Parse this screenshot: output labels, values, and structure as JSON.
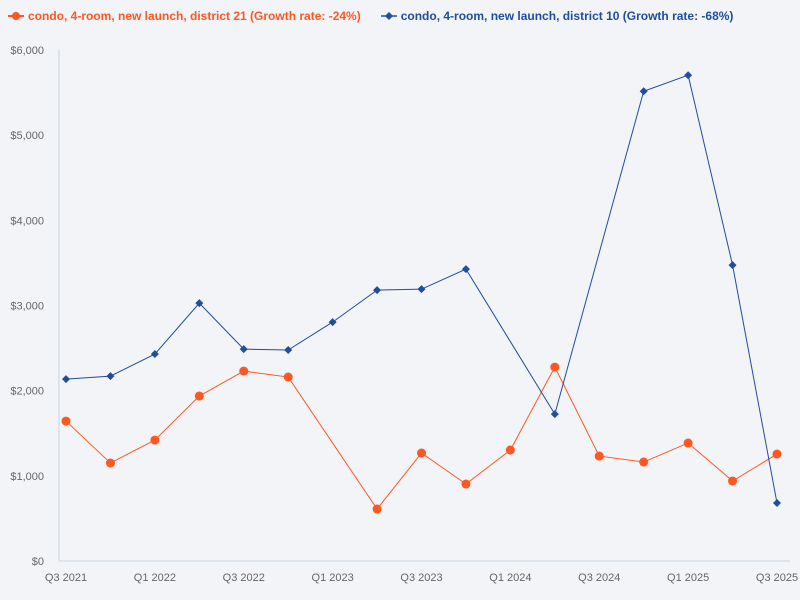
{
  "chart_data": {
    "type": "line",
    "x": [
      "Q3 2021",
      "Q4 2021",
      "Q1 2022",
      "Q2 2022",
      "Q3 2022",
      "Q4 2022",
      "Q1 2023",
      "Q2 2023",
      "Q3 2023",
      "Q4 2023",
      "Q1 2024",
      "Q2 2024",
      "Q3 2024",
      "Q4 2024",
      "Q1 2025",
      "Q2 2025",
      "Q3 2025"
    ],
    "x_tick_labels": [
      "Q3 2021",
      "Q1 2022",
      "Q3 2022",
      "Q1 2023",
      "Q3 2023",
      "Q1 2024",
      "Q3 2024",
      "Q1 2025",
      "Q3 2025"
    ],
    "y_tick_labels": [
      "$0",
      "$1,000",
      "$2,000",
      "$3,000",
      "$4,000",
      "$5,000",
      "$6,000"
    ],
    "ylim": [
      0,
      6000
    ],
    "grid": false,
    "legend_position": "top-left",
    "series": [
      {
        "name": "condo, 4-room, new launch, district 21 (Growth rate: -24%)",
        "color": "#ff5722",
        "marker": "circle",
        "values": [
          1643,
          1150,
          1420,
          1937,
          2230,
          2160,
          null,
          610,
          1268,
          904,
          1303,
          2277,
          1232,
          1162,
          1385,
          939,
          1256
        ]
      },
      {
        "name": "condo, 4-room, new launch, district 10 (Growth rate: -68%)",
        "color": "#1f4e9c",
        "marker": "diamond",
        "values": [
          2136,
          2171,
          2430,
          3028,
          2488,
          2477,
          2805,
          3181,
          3192,
          3427,
          null,
          1725,
          null,
          5516,
          5704,
          3474,
          681
        ]
      }
    ]
  }
}
